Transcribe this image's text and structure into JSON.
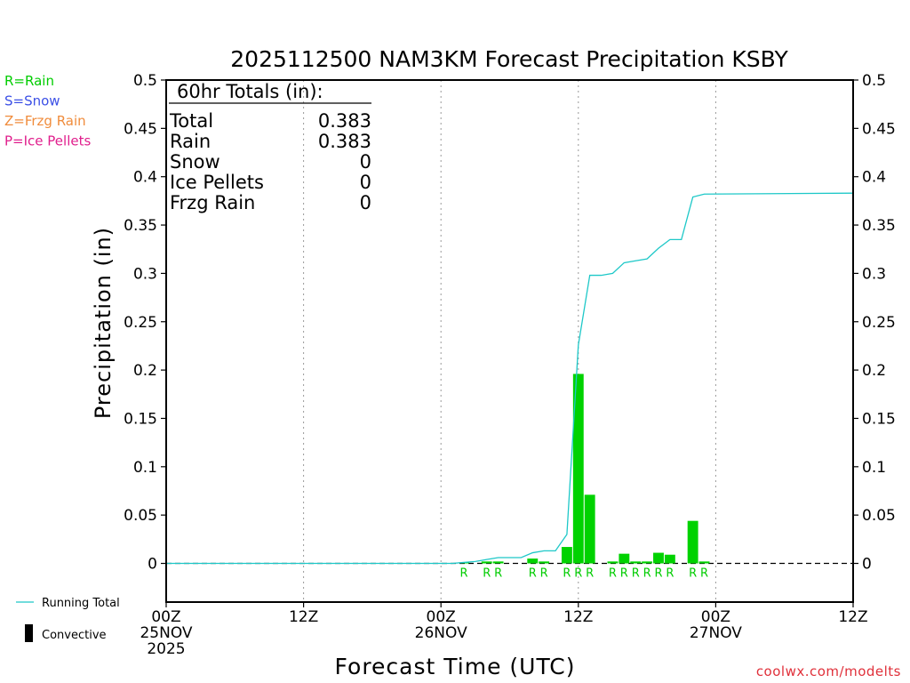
{
  "chart_data": {
    "type": "bar",
    "title": "2025112500 NAM3KM Forecast Precipitation KSBY",
    "xlabel": "Forecast Time (UTC)",
    "ylabel": "Precipitation (in)",
    "xlim": [
      0,
      60
    ],
    "ylim": [
      -0.04,
      0.5
    ],
    "y_ticks": [
      "0.5",
      "0.45",
      "0.4",
      "0.35",
      "0.3",
      "0.25",
      "0.2",
      "0.15",
      "0.1",
      "0.05",
      "0"
    ],
    "x_ticks": [
      {
        "h": 0,
        "lines": [
          "00Z",
          "25NOV",
          "2025"
        ]
      },
      {
        "h": 12,
        "lines": [
          "12Z"
        ]
      },
      {
        "h": 24,
        "lines": [
          "00Z",
          "26NOV"
        ]
      },
      {
        "h": 36,
        "lines": [
          "12Z"
        ]
      },
      {
        "h": 48,
        "lines": [
          "00Z",
          "27NOV"
        ]
      },
      {
        "h": 60,
        "lines": [
          "12Z"
        ]
      }
    ],
    "grid": "vertical dotted at 12-hour ticks",
    "bars": [
      {
        "h": 26,
        "value": 0.001,
        "type": "R"
      },
      {
        "h": 28,
        "value": 0.002,
        "type": "R"
      },
      {
        "h": 29,
        "value": 0.002,
        "type": "R"
      },
      {
        "h": 32,
        "value": 0.005,
        "type": "R"
      },
      {
        "h": 33,
        "value": 0.002,
        "type": "R"
      },
      {
        "h": 35,
        "value": 0.017,
        "type": "R"
      },
      {
        "h": 36,
        "value": 0.196,
        "type": "R"
      },
      {
        "h": 37,
        "value": 0.071,
        "type": "R"
      },
      {
        "h": 39,
        "value": 0.002,
        "type": "R"
      },
      {
        "h": 40,
        "value": 0.01,
        "type": "R"
      },
      {
        "h": 41,
        "value": 0.002,
        "type": "R"
      },
      {
        "h": 42,
        "value": 0.002,
        "type": "R"
      },
      {
        "h": 43,
        "value": 0.011,
        "type": "R"
      },
      {
        "h": 44,
        "value": 0.009,
        "type": "R"
      },
      {
        "h": 46,
        "value": 0.044,
        "type": "R"
      },
      {
        "h": 47,
        "value": 0.002,
        "type": "R"
      }
    ],
    "running_total": {
      "name": "Running Total",
      "x": [
        0,
        25,
        26,
        27,
        28,
        29,
        30,
        31,
        32,
        33,
        34,
        35,
        36,
        37,
        38,
        39,
        40,
        41,
        42,
        43,
        44,
        45,
        46,
        47,
        60
      ],
      "y": [
        0,
        0,
        0.001,
        0.002,
        0.004,
        0.006,
        0.006,
        0.006,
        0.011,
        0.013,
        0.013,
        0.03,
        0.226,
        0.298,
        0.298,
        0.3,
        0.311,
        0.313,
        0.315,
        0.326,
        0.335,
        0.335,
        0.379,
        0.382,
        0.383
      ]
    }
  },
  "totals": {
    "heading": "60hr Totals (in):",
    "rows": [
      {
        "label": "Total",
        "value": "0.383"
      },
      {
        "label": "Rain",
        "value": "0.383"
      },
      {
        "label": "Snow",
        "value": "0"
      },
      {
        "label": "Ice Pellets",
        "value": "0"
      },
      {
        "label": "Frzg Rain",
        "value": "0"
      }
    ]
  },
  "legend": [
    {
      "text": "R=Rain",
      "color": "#00cc00"
    },
    {
      "text": "S=Snow",
      "color": "#3c50e6"
    },
    {
      "text": "Z=Frzg Rain",
      "color": "#f08c3c"
    },
    {
      "text": "P=Ice Pellets",
      "color": "#e01e8c"
    }
  ],
  "key": {
    "running_total": "Running Total",
    "convective": "Convective"
  },
  "credit": "coolwx.com/modelts",
  "colors": {
    "bar": "#00d200",
    "line": "#1ec8c8",
    "rain_label": "#00cc00",
    "convective": "#000000",
    "credit": "#e0303a"
  }
}
